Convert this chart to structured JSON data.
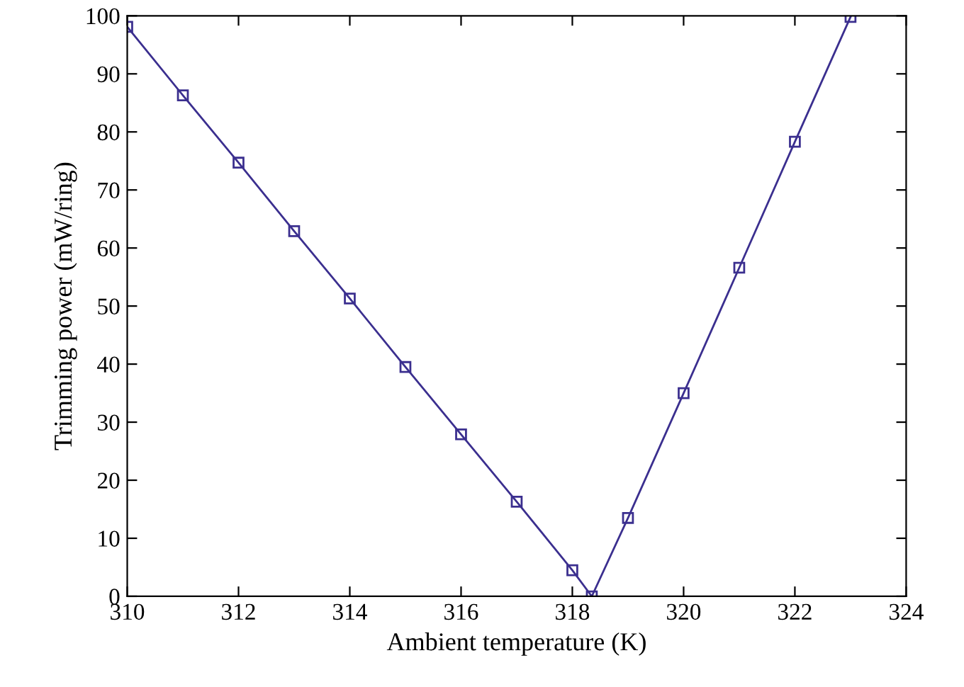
{
  "chart_data": {
    "type": "line",
    "xlabel": "Ambient temperature (K)",
    "ylabel": "Trimming power (mW/ring)",
    "x": [
      310,
      311,
      312,
      313,
      314,
      315,
      316,
      317,
      318,
      318.35,
      319,
      320,
      321,
      322,
      323
    ],
    "series": [
      {
        "color": "#3b2f8f",
        "values": [
          98.1,
          86.3,
          74.7,
          62.9,
          51.3,
          39.5,
          27.9,
          16.3,
          4.5,
          0,
          13.5,
          35.0,
          56.6,
          78.3,
          99.8
        ]
      }
    ],
    "xlim": [
      310,
      324
    ],
    "xticks": [
      310,
      312,
      314,
      316,
      318,
      320,
      322,
      324
    ],
    "ylim": [
      0,
      100
    ],
    "yticks": [
      0,
      10,
      20,
      30,
      40,
      50,
      60,
      70,
      80,
      90,
      100
    ],
    "marker": "square",
    "line_style": "solid",
    "grid": false,
    "legend": false
  }
}
